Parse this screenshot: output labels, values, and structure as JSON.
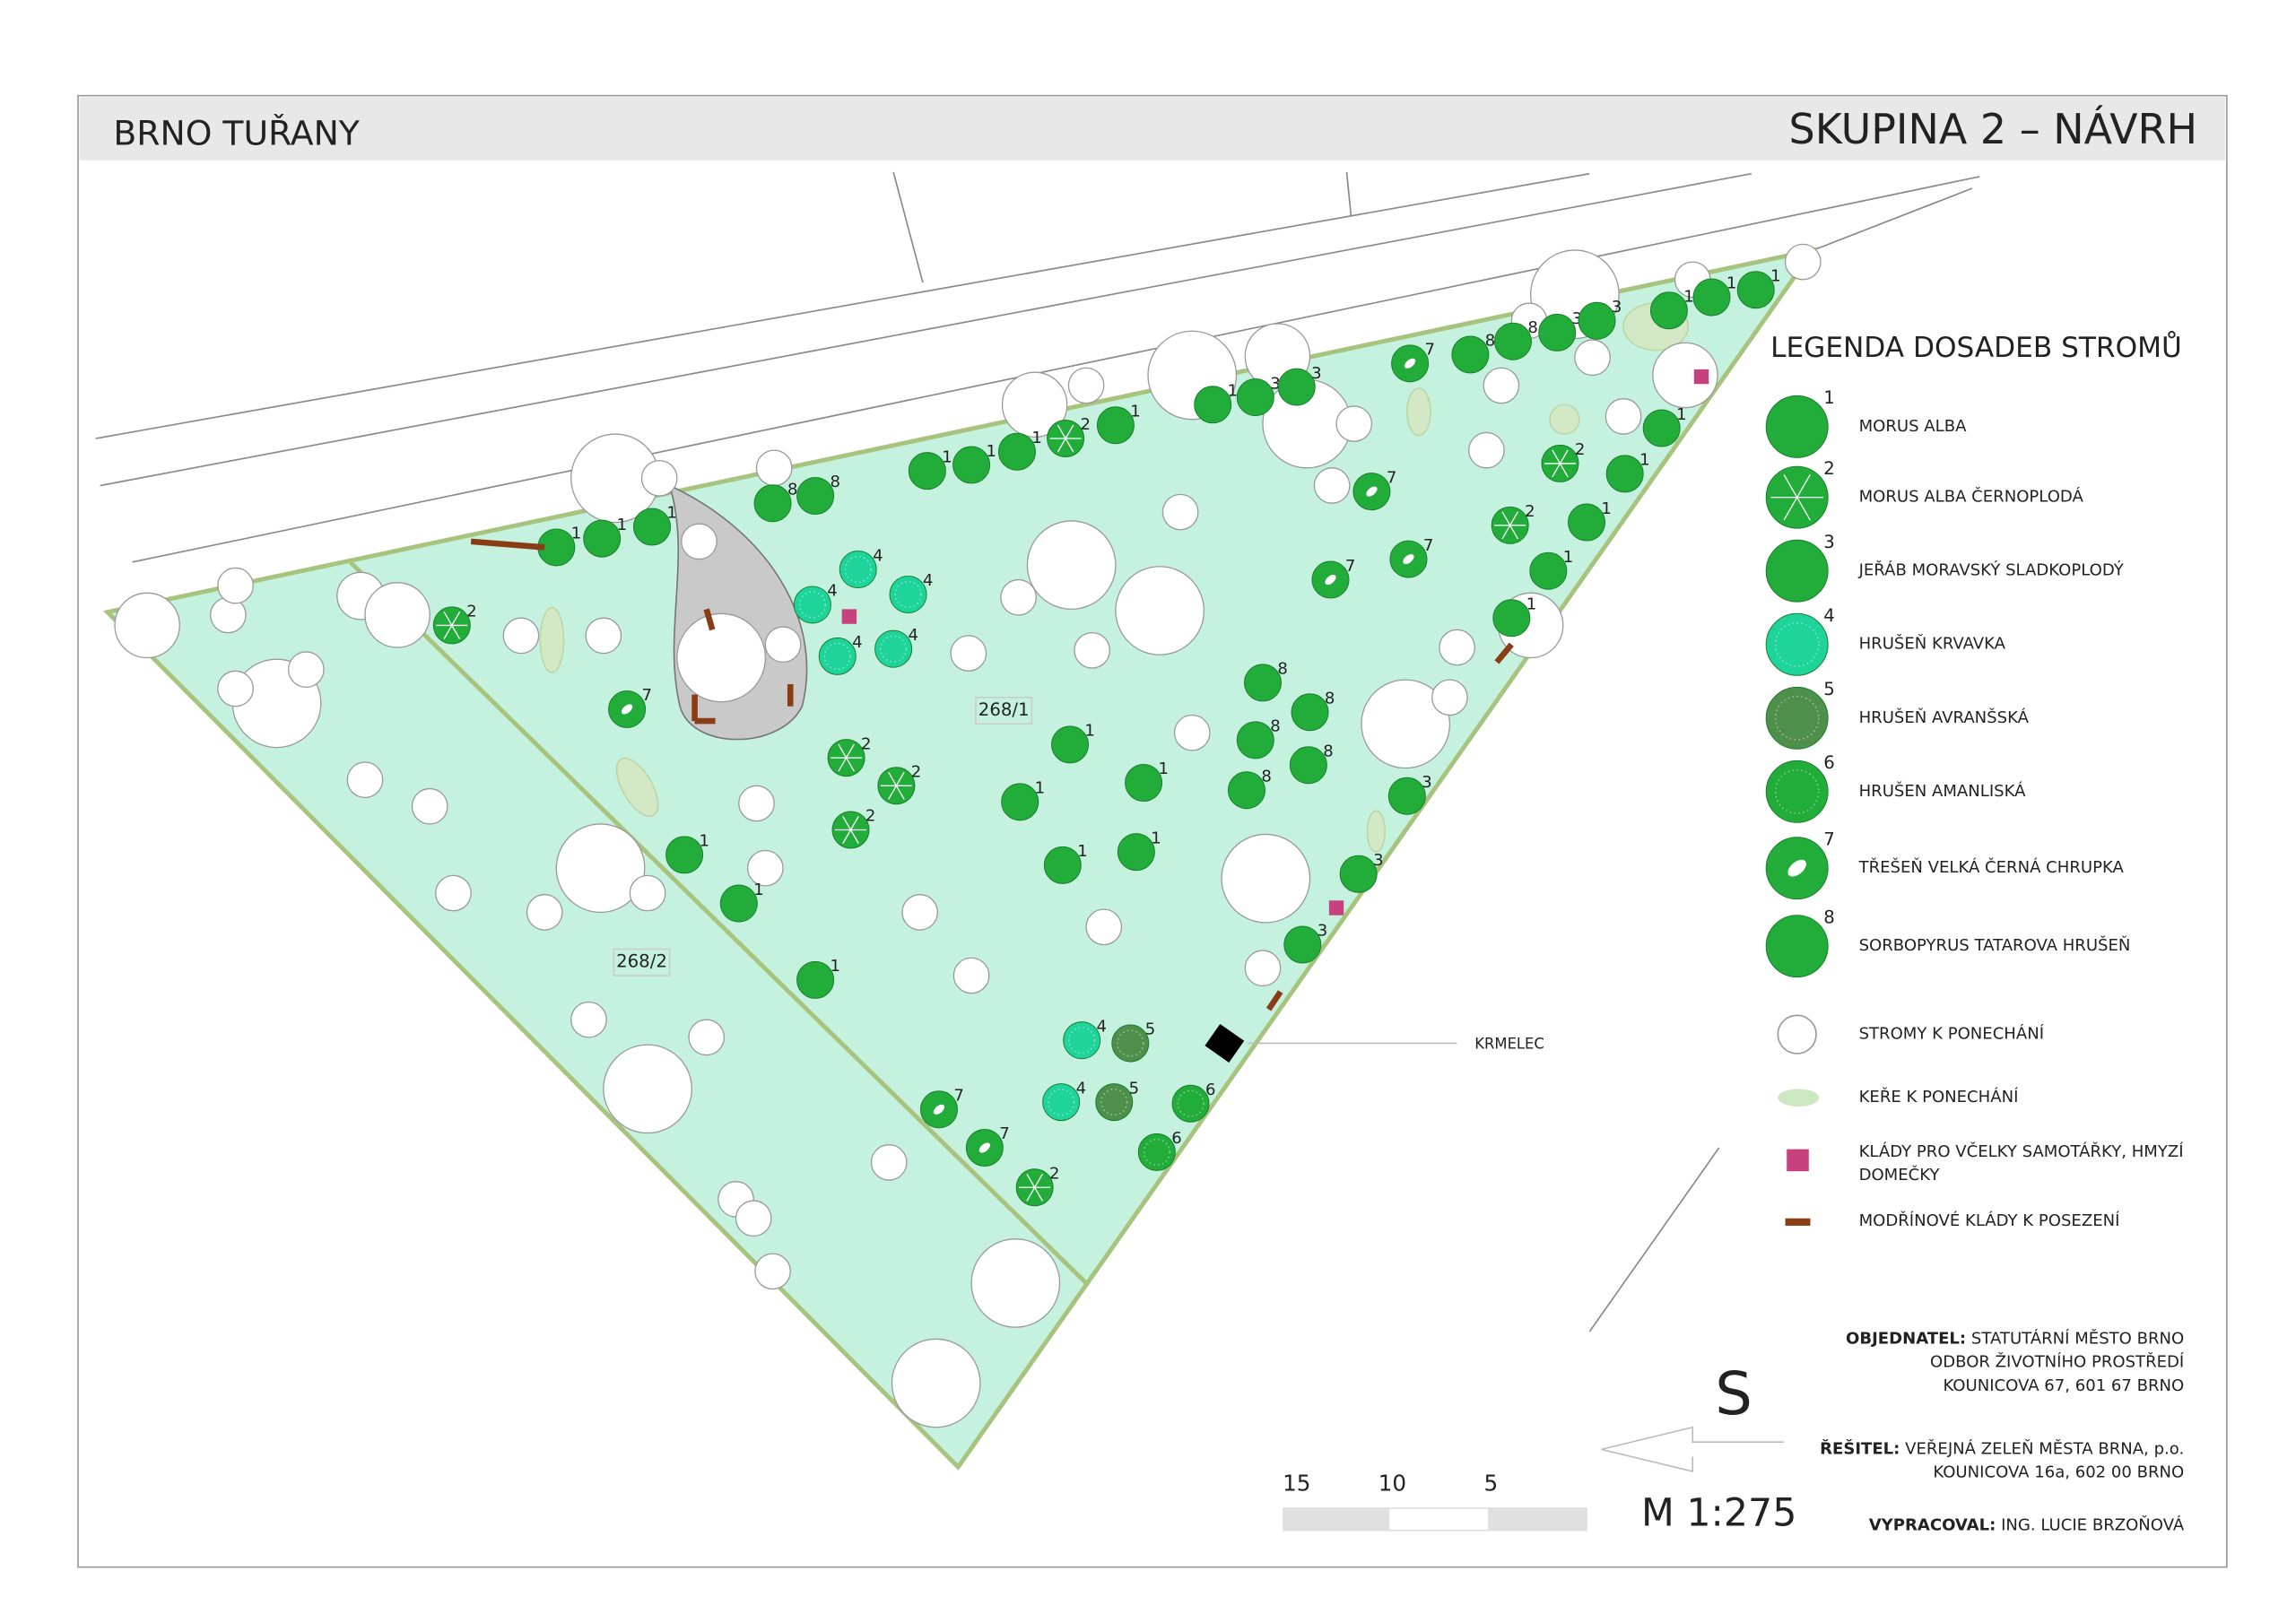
{
  "header": {
    "location": "BRNO TUŘANY",
    "title": "SKUPINA 2 – NÁVRH"
  },
  "legend": {
    "title": "LEGENDA DOSADEB STROMŮ",
    "trees": [
      {
        "number": "1",
        "name": "MORUS ALBA",
        "color": "#22ad3a"
      },
      {
        "number": "2",
        "name": "MORUS ALBA ČERNOPLODÁ",
        "color": "#22ad3a"
      },
      {
        "number": "3",
        "name": "JEŘÁB MORAVSKÝ SLADKOPLODÝ",
        "color": "#22ad3a"
      },
      {
        "number": "4",
        "name": "HRUŠEŇ KRVAVKA",
        "color": "#1ed49b"
      },
      {
        "number": "5",
        "name": "HRUŠEŇ AVRANŠSKÁ",
        "color": "#4f8f4c"
      },
      {
        "number": "6",
        "name": "HRUŠEN AMANLISKÁ",
        "color": "#22ad3a"
      },
      {
        "number": "7",
        "name": "TŘEŠEŇ VELKÁ ČERNÁ CHRUPKA",
        "color": "#22ad3a"
      },
      {
        "number": "8",
        "name": "SORBOPYRUS TATAROVA HRUŠEŇ",
        "color": "#22ad3a"
      }
    ],
    "others": [
      {
        "lines": [
          "STROMY K PONECHÁNÍ"
        ]
      },
      {
        "lines": [
          "KEŘE K PONECHÁNÍ"
        ]
      },
      {
        "lines": [
          "KLÁDY PRO VČELKY SAMOTÁŘKY, HMYZÍ",
          "DOMEČKY"
        ]
      },
      {
        "lines": [
          "MODŘÍNOVÉ KLÁDY K POSEZENÍ"
        ]
      }
    ]
  },
  "plan": {
    "parcels": [
      "268/1",
      "268/2"
    ],
    "feeder": "KRMELEC",
    "trees": [
      "1",
      "1",
      "1",
      "2",
      "7",
      "8",
      "8",
      "1",
      "1",
      "1",
      "2",
      "1",
      "1",
      "3",
      "3",
      "7",
      "8",
      "8",
      "3",
      "3",
      "1",
      "1",
      "1",
      "1",
      "2",
      "1",
      "1",
      "2",
      "1",
      "1",
      "7",
      "7",
      "7",
      "4",
      "4",
      "4",
      "4",
      "4",
      "2",
      "2",
      "2",
      "1",
      "1",
      "1",
      "1",
      "1",
      "8",
      "8",
      "8",
      "8",
      "8",
      "3",
      "3",
      "3",
      "1",
      "1",
      "1",
      "4",
      "5",
      "4",
      "5",
      "6",
      "6",
      "7",
      "7",
      "2"
    ]
  },
  "title_block": [
    {
      "label": "OBJEDNATEL:",
      "lines": [
        "STATUTÁRNÍ MĚSTO BRNO",
        "ODBOR ŽIVOTNÍHO PROSTŘEDÍ",
        "KOUNICOVA 67, 601 67 BRNO"
      ]
    },
    {
      "label": "ŘEŠITEL:",
      "lines": [
        "VEŘEJNÁ ZELEŇ MĚSTA BRNA, p.o.",
        "KOUNICOVA 16a, 602 00 BRNO"
      ]
    },
    {
      "label": "VYPRACOVAL:",
      "lines": [
        "ING. LUCIE BRZOŇOVÁ"
      ]
    }
  ],
  "north": "S",
  "scale": {
    "label": "M 1:275",
    "ticks": [
      "15",
      "10",
      "5"
    ]
  }
}
